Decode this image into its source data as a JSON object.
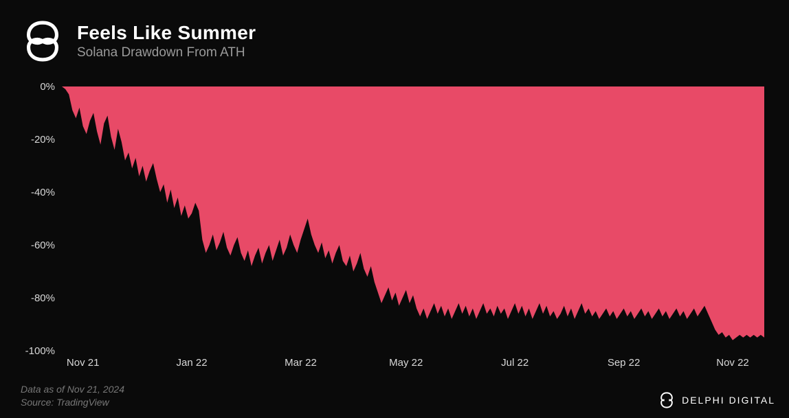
{
  "header": {
    "title": "Feels Like Summer",
    "subtitle": "Solana Drawdown From ATH"
  },
  "chart": {
    "type": "area",
    "background_color": "#0a0a0a",
    "area_color": "#e84a67",
    "line_color": "#000000",
    "ylim": [
      -100,
      0
    ],
    "ytick_step": 20,
    "yticks": [
      {
        "v": 0,
        "label": "0%"
      },
      {
        "v": -20,
        "label": "-20%"
      },
      {
        "v": -40,
        "label": "-40%"
      },
      {
        "v": -60,
        "label": "-60%"
      },
      {
        "v": -80,
        "label": "-80%"
      },
      {
        "v": -100,
        "label": "-100%"
      }
    ],
    "xticks": [
      {
        "t": 0.03,
        "label": "Nov 21"
      },
      {
        "t": 0.185,
        "label": "Jan 22"
      },
      {
        "t": 0.34,
        "label": "Mar 22"
      },
      {
        "t": 0.49,
        "label": "May 22"
      },
      {
        "t": 0.645,
        "label": "Jul 22"
      },
      {
        "t": 0.8,
        "label": "Sep 22"
      },
      {
        "t": 0.955,
        "label": "Nov 22"
      }
    ],
    "series": [
      {
        "t": 0.0,
        "v": 0
      },
      {
        "t": 0.005,
        "v": -1
      },
      {
        "t": 0.01,
        "v": -3
      },
      {
        "t": 0.015,
        "v": -9
      },
      {
        "t": 0.02,
        "v": -12
      },
      {
        "t": 0.025,
        "v": -8
      },
      {
        "t": 0.03,
        "v": -15
      },
      {
        "t": 0.035,
        "v": -18
      },
      {
        "t": 0.04,
        "v": -13
      },
      {
        "t": 0.045,
        "v": -10
      },
      {
        "t": 0.05,
        "v": -17
      },
      {
        "t": 0.055,
        "v": -22
      },
      {
        "t": 0.06,
        "v": -14
      },
      {
        "t": 0.065,
        "v": -11
      },
      {
        "t": 0.07,
        "v": -19
      },
      {
        "t": 0.075,
        "v": -24
      },
      {
        "t": 0.08,
        "v": -16
      },
      {
        "t": 0.085,
        "v": -21
      },
      {
        "t": 0.09,
        "v": -28
      },
      {
        "t": 0.095,
        "v": -25
      },
      {
        "t": 0.1,
        "v": -31
      },
      {
        "t": 0.105,
        "v": -27
      },
      {
        "t": 0.11,
        "v": -34
      },
      {
        "t": 0.115,
        "v": -30
      },
      {
        "t": 0.12,
        "v": -36
      },
      {
        "t": 0.125,
        "v": -32
      },
      {
        "t": 0.13,
        "v": -29
      },
      {
        "t": 0.135,
        "v": -35
      },
      {
        "t": 0.14,
        "v": -40
      },
      {
        "t": 0.145,
        "v": -37
      },
      {
        "t": 0.15,
        "v": -44
      },
      {
        "t": 0.155,
        "v": -39
      },
      {
        "t": 0.16,
        "v": -46
      },
      {
        "t": 0.165,
        "v": -42
      },
      {
        "t": 0.17,
        "v": -49
      },
      {
        "t": 0.175,
        "v": -45
      },
      {
        "t": 0.18,
        "v": -50
      },
      {
        "t": 0.185,
        "v": -48
      },
      {
        "t": 0.19,
        "v": -44
      },
      {
        "t": 0.195,
        "v": -47
      },
      {
        "t": 0.2,
        "v": -58
      },
      {
        "t": 0.205,
        "v": -63
      },
      {
        "t": 0.21,
        "v": -60
      },
      {
        "t": 0.215,
        "v": -56
      },
      {
        "t": 0.22,
        "v": -62
      },
      {
        "t": 0.225,
        "v": -59
      },
      {
        "t": 0.23,
        "v": -55
      },
      {
        "t": 0.235,
        "v": -61
      },
      {
        "t": 0.24,
        "v": -64
      },
      {
        "t": 0.245,
        "v": -60
      },
      {
        "t": 0.25,
        "v": -57
      },
      {
        "t": 0.255,
        "v": -63
      },
      {
        "t": 0.26,
        "v": -66
      },
      {
        "t": 0.265,
        "v": -62
      },
      {
        "t": 0.27,
        "v": -68
      },
      {
        "t": 0.275,
        "v": -64
      },
      {
        "t": 0.28,
        "v": -61
      },
      {
        "t": 0.285,
        "v": -67
      },
      {
        "t": 0.29,
        "v": -63
      },
      {
        "t": 0.295,
        "v": -60
      },
      {
        "t": 0.3,
        "v": -66
      },
      {
        "t": 0.305,
        "v": -62
      },
      {
        "t": 0.31,
        "v": -58
      },
      {
        "t": 0.315,
        "v": -64
      },
      {
        "t": 0.32,
        "v": -61
      },
      {
        "t": 0.325,
        "v": -56
      },
      {
        "t": 0.33,
        "v": -60
      },
      {
        "t": 0.335,
        "v": -63
      },
      {
        "t": 0.34,
        "v": -58
      },
      {
        "t": 0.345,
        "v": -54
      },
      {
        "t": 0.35,
        "v": -50
      },
      {
        "t": 0.355,
        "v": -56
      },
      {
        "t": 0.36,
        "v": -60
      },
      {
        "t": 0.365,
        "v": -63
      },
      {
        "t": 0.37,
        "v": -59
      },
      {
        "t": 0.375,
        "v": -65
      },
      {
        "t": 0.38,
        "v": -62
      },
      {
        "t": 0.385,
        "v": -67
      },
      {
        "t": 0.39,
        "v": -63
      },
      {
        "t": 0.395,
        "v": -60
      },
      {
        "t": 0.4,
        "v": -66
      },
      {
        "t": 0.405,
        "v": -68
      },
      {
        "t": 0.41,
        "v": -64
      },
      {
        "t": 0.415,
        "v": -70
      },
      {
        "t": 0.42,
        "v": -67
      },
      {
        "t": 0.425,
        "v": -63
      },
      {
        "t": 0.43,
        "v": -69
      },
      {
        "t": 0.435,
        "v": -72
      },
      {
        "t": 0.44,
        "v": -68
      },
      {
        "t": 0.445,
        "v": -74
      },
      {
        "t": 0.45,
        "v": -78
      },
      {
        "t": 0.455,
        "v": -82
      },
      {
        "t": 0.46,
        "v": -79
      },
      {
        "t": 0.465,
        "v": -76
      },
      {
        "t": 0.47,
        "v": -81
      },
      {
        "t": 0.475,
        "v": -78
      },
      {
        "t": 0.48,
        "v": -83
      },
      {
        "t": 0.485,
        "v": -80
      },
      {
        "t": 0.49,
        "v": -77
      },
      {
        "t": 0.495,
        "v": -82
      },
      {
        "t": 0.5,
        "v": -79
      },
      {
        "t": 0.505,
        "v": -84
      },
      {
        "t": 0.51,
        "v": -87
      },
      {
        "t": 0.515,
        "v": -84
      },
      {
        "t": 0.52,
        "v": -88
      },
      {
        "t": 0.525,
        "v": -85
      },
      {
        "t": 0.53,
        "v": -82
      },
      {
        "t": 0.535,
        "v": -86
      },
      {
        "t": 0.54,
        "v": -83
      },
      {
        "t": 0.545,
        "v": -87
      },
      {
        "t": 0.55,
        "v": -84
      },
      {
        "t": 0.555,
        "v": -88
      },
      {
        "t": 0.56,
        "v": -85
      },
      {
        "t": 0.565,
        "v": -82
      },
      {
        "t": 0.57,
        "v": -86
      },
      {
        "t": 0.575,
        "v": -83
      },
      {
        "t": 0.58,
        "v": -87
      },
      {
        "t": 0.585,
        "v": -84
      },
      {
        "t": 0.59,
        "v": -88
      },
      {
        "t": 0.595,
        "v": -85
      },
      {
        "t": 0.6,
        "v": -82
      },
      {
        "t": 0.605,
        "v": -86
      },
      {
        "t": 0.61,
        "v": -84
      },
      {
        "t": 0.615,
        "v": -87
      },
      {
        "t": 0.62,
        "v": -83
      },
      {
        "t": 0.625,
        "v": -86
      },
      {
        "t": 0.63,
        "v": -84
      },
      {
        "t": 0.635,
        "v": -88
      },
      {
        "t": 0.64,
        "v": -85
      },
      {
        "t": 0.645,
        "v": -82
      },
      {
        "t": 0.65,
        "v": -86
      },
      {
        "t": 0.655,
        "v": -83
      },
      {
        "t": 0.66,
        "v": -87
      },
      {
        "t": 0.665,
        "v": -84
      },
      {
        "t": 0.67,
        "v": -88
      },
      {
        "t": 0.675,
        "v": -85
      },
      {
        "t": 0.68,
        "v": -82
      },
      {
        "t": 0.685,
        "v": -86
      },
      {
        "t": 0.69,
        "v": -83
      },
      {
        "t": 0.695,
        "v": -87
      },
      {
        "t": 0.7,
        "v": -85
      },
      {
        "t": 0.705,
        "v": -88
      },
      {
        "t": 0.71,
        "v": -86
      },
      {
        "t": 0.715,
        "v": -83
      },
      {
        "t": 0.72,
        "v": -87
      },
      {
        "t": 0.725,
        "v": -84
      },
      {
        "t": 0.73,
        "v": -88
      },
      {
        "t": 0.735,
        "v": -85
      },
      {
        "t": 0.74,
        "v": -82
      },
      {
        "t": 0.745,
        "v": -86
      },
      {
        "t": 0.75,
        "v": -84
      },
      {
        "t": 0.755,
        "v": -87
      },
      {
        "t": 0.76,
        "v": -85
      },
      {
        "t": 0.765,
        "v": -88
      },
      {
        "t": 0.77,
        "v": -86
      },
      {
        "t": 0.775,
        "v": -84
      },
      {
        "t": 0.78,
        "v": -87
      },
      {
        "t": 0.785,
        "v": -85
      },
      {
        "t": 0.79,
        "v": -88
      },
      {
        "t": 0.795,
        "v": -86
      },
      {
        "t": 0.8,
        "v": -84
      },
      {
        "t": 0.805,
        "v": -87
      },
      {
        "t": 0.81,
        "v": -85
      },
      {
        "t": 0.815,
        "v": -88
      },
      {
        "t": 0.82,
        "v": -86
      },
      {
        "t": 0.825,
        "v": -84
      },
      {
        "t": 0.83,
        "v": -87
      },
      {
        "t": 0.835,
        "v": -85
      },
      {
        "t": 0.84,
        "v": -88
      },
      {
        "t": 0.845,
        "v": -86
      },
      {
        "t": 0.85,
        "v": -84
      },
      {
        "t": 0.855,
        "v": -87
      },
      {
        "t": 0.86,
        "v": -85
      },
      {
        "t": 0.865,
        "v": -88
      },
      {
        "t": 0.87,
        "v": -86
      },
      {
        "t": 0.875,
        "v": -84
      },
      {
        "t": 0.88,
        "v": -87
      },
      {
        "t": 0.885,
        "v": -85
      },
      {
        "t": 0.89,
        "v": -88
      },
      {
        "t": 0.895,
        "v": -86
      },
      {
        "t": 0.9,
        "v": -84
      },
      {
        "t": 0.905,
        "v": -87
      },
      {
        "t": 0.91,
        "v": -85
      },
      {
        "t": 0.915,
        "v": -83
      },
      {
        "t": 0.92,
        "v": -86
      },
      {
        "t": 0.925,
        "v": -89
      },
      {
        "t": 0.93,
        "v": -92
      },
      {
        "t": 0.935,
        "v": -94
      },
      {
        "t": 0.94,
        "v": -93
      },
      {
        "t": 0.945,
        "v": -95
      },
      {
        "t": 0.95,
        "v": -94
      },
      {
        "t": 0.955,
        "v": -96
      },
      {
        "t": 0.96,
        "v": -95
      },
      {
        "t": 0.965,
        "v": -94
      },
      {
        "t": 0.97,
        "v": -95
      },
      {
        "t": 0.975,
        "v": -94
      },
      {
        "t": 0.98,
        "v": -95
      },
      {
        "t": 0.985,
        "v": -94
      },
      {
        "t": 0.99,
        "v": -95
      },
      {
        "t": 0.995,
        "v": -94
      },
      {
        "t": 1.0,
        "v": -95
      }
    ]
  },
  "footer": {
    "data_as_of": "Data as of Nov 21, 2024",
    "source": "Source: TradingView",
    "brand": "DELPHI DIGITAL"
  },
  "colors": {
    "bg": "#0a0a0a",
    "title": "#ffffff",
    "subtitle": "#9a9a9a",
    "axis_text": "#d8d8d8",
    "footer_text": "#777777"
  }
}
